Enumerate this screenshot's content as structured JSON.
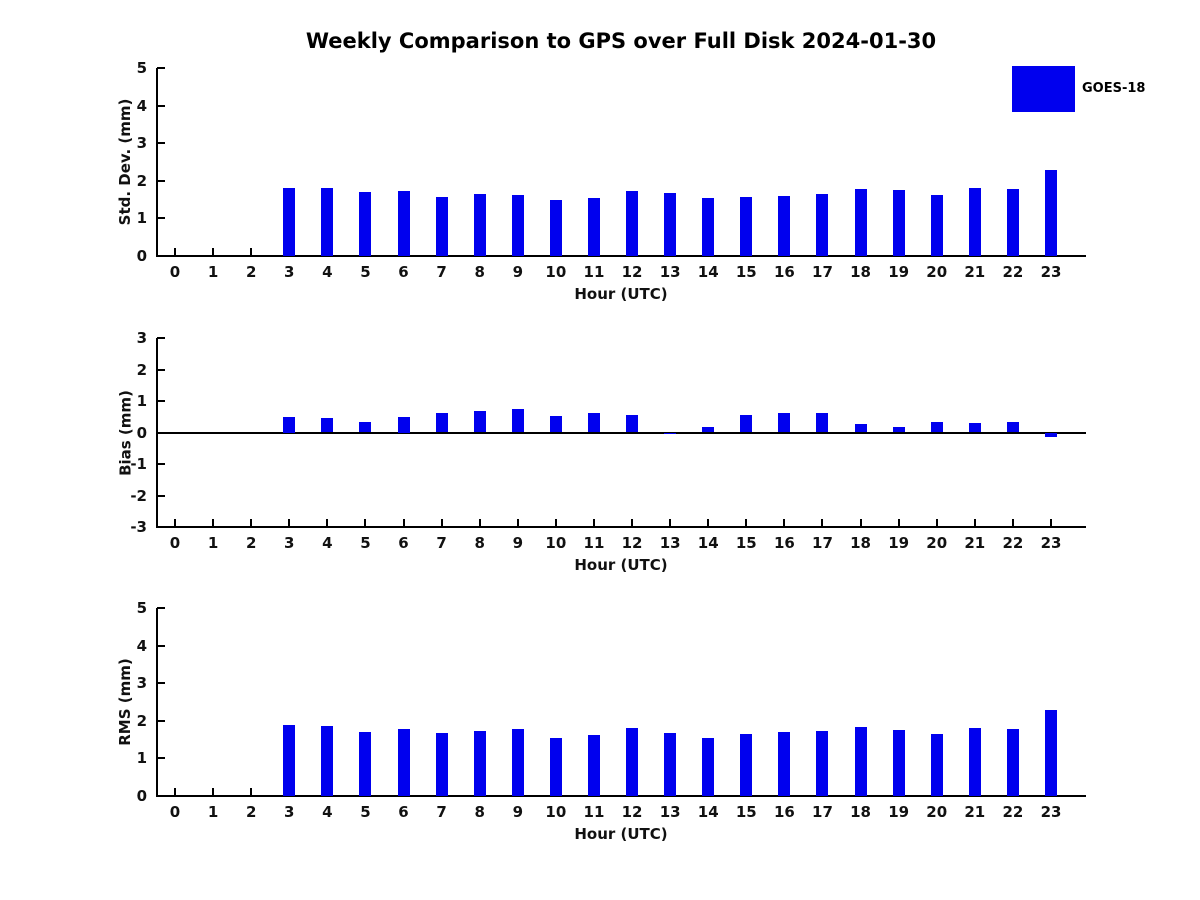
{
  "title": "Weekly Comparison to GPS over Full Disk 2024-01-30",
  "legend": {
    "label": "GOES-18",
    "swatch_color": "#0000ee"
  },
  "colors": {
    "bar": "#0000ee",
    "axis": "#000000",
    "text": "#111111",
    "background": "#ffffff"
  },
  "chart_data": [
    {
      "type": "bar",
      "ylabel": "Std. Dev. (mm)",
      "xlabel": "Hour (UTC)",
      "categories": [
        "0",
        "1",
        "2",
        "3",
        "4",
        "5",
        "6",
        "7",
        "8",
        "9",
        "10",
        "11",
        "12",
        "13",
        "14",
        "15",
        "16",
        "17",
        "18",
        "19",
        "20",
        "21",
        "22",
        "23"
      ],
      "series": [
        {
          "name": "GOES-18",
          "color": "#0000ee",
          "values": [
            null,
            null,
            null,
            1.82,
            1.82,
            1.69,
            1.72,
            1.58,
            1.64,
            1.63,
            1.48,
            1.55,
            1.74,
            1.67,
            1.53,
            1.56,
            1.6,
            1.65,
            1.79,
            1.75,
            1.63,
            1.8,
            1.77,
            2.28
          ]
        }
      ],
      "ylim": [
        0,
        5
      ],
      "yticks": [
        0,
        1,
        2,
        3,
        4,
        5
      ],
      "grid": false,
      "zero_line": false
    },
    {
      "type": "bar",
      "ylabel": "Bias (mm)",
      "xlabel": "Hour (UTC)",
      "categories": [
        "0",
        "1",
        "2",
        "3",
        "4",
        "5",
        "6",
        "7",
        "8",
        "9",
        "10",
        "11",
        "12",
        "13",
        "14",
        "15",
        "16",
        "17",
        "18",
        "19",
        "20",
        "21",
        "22",
        "23"
      ],
      "series": [
        {
          "name": "GOES-18",
          "color": "#0000ee",
          "values": [
            null,
            null,
            null,
            0.5,
            0.45,
            0.32,
            0.5,
            0.62,
            0.68,
            0.74,
            0.52,
            0.63,
            0.57,
            -0.06,
            0.18,
            0.57,
            0.62,
            0.62,
            0.28,
            0.18,
            0.32,
            0.31,
            0.33,
            -0.14
          ]
        }
      ],
      "ylim": [
        -3,
        3
      ],
      "yticks": [
        -3,
        -2,
        -1,
        0,
        1,
        2,
        3
      ],
      "grid": false,
      "zero_line": true
    },
    {
      "type": "bar",
      "ylabel": "RMS (mm)",
      "xlabel": "Hour (UTC)",
      "categories": [
        "0",
        "1",
        "2",
        "3",
        "4",
        "5",
        "6",
        "7",
        "8",
        "9",
        "10",
        "11",
        "12",
        "13",
        "14",
        "15",
        "16",
        "17",
        "18",
        "19",
        "20",
        "21",
        "22",
        "23"
      ],
      "series": [
        {
          "name": "GOES-18",
          "color": "#0000ee",
          "values": [
            null,
            null,
            null,
            1.89,
            1.86,
            1.7,
            1.78,
            1.68,
            1.73,
            1.78,
            1.55,
            1.62,
            1.82,
            1.67,
            1.53,
            1.64,
            1.7,
            1.73,
            1.83,
            1.75,
            1.66,
            1.81,
            1.78,
            2.28
          ]
        }
      ],
      "ylim": [
        0,
        5
      ],
      "yticks": [
        0,
        1,
        2,
        3,
        4,
        5
      ],
      "grid": false,
      "zero_line": false
    }
  ]
}
